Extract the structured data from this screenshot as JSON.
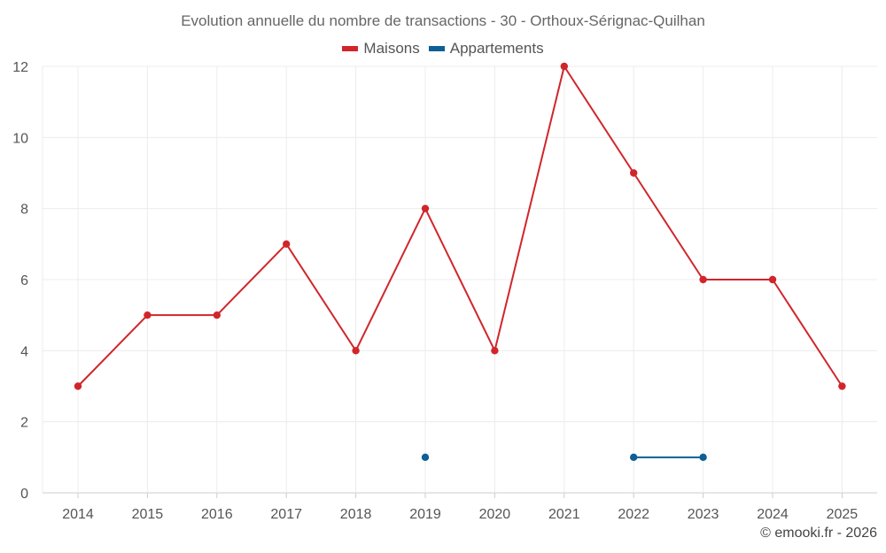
{
  "chart_data": {
    "type": "line",
    "title": "Evolution annuelle du nombre de transactions - 30 - Orthoux-Sérignac-Quilhan",
    "categories": [
      "2014",
      "2015",
      "2016",
      "2017",
      "2018",
      "2019",
      "2020",
      "2021",
      "2022",
      "2023",
      "2024",
      "2025"
    ],
    "y_ticks": [
      0,
      2,
      4,
      6,
      8,
      10,
      12
    ],
    "ylim": [
      0,
      12
    ],
    "grid": true,
    "legend_position": "top-center",
    "series": [
      {
        "name": "Maisons",
        "color": "#d0262b",
        "values": [
          3,
          5,
          5,
          7,
          4,
          8,
          4,
          12,
          9,
          6,
          6,
          3
        ]
      },
      {
        "name": "Appartements",
        "color": "#0d5f94",
        "values": [
          null,
          null,
          null,
          null,
          null,
          1,
          null,
          null,
          1,
          1,
          null,
          null
        ]
      }
    ]
  },
  "credit": "© emooki.fr - 2026"
}
